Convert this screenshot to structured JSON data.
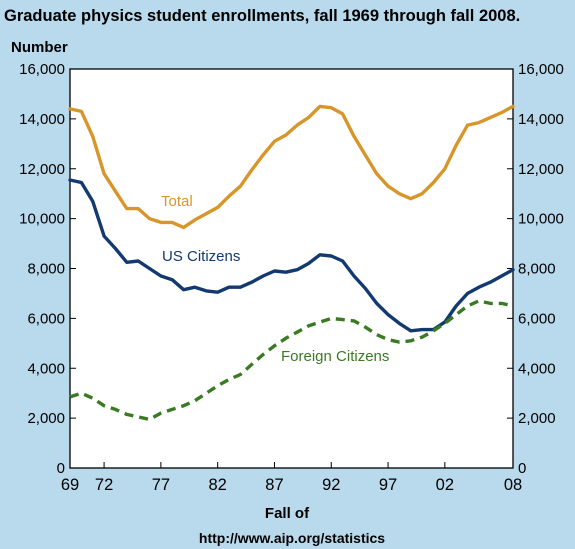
{
  "chart_data": {
    "type": "line",
    "title": "Graduate physics student enrollments, fall 1969 through fall 2008.",
    "ylabel": "Number",
    "xlabel": "Fall of",
    "source": "http://www.aip.org/statistics",
    "ylim": [
      0,
      16000
    ],
    "xlim": [
      1969,
      2008
    ],
    "yticks": [
      0,
      2000,
      4000,
      6000,
      8000,
      10000,
      12000,
      14000,
      16000
    ],
    "ytick_labels": [
      "0",
      "2,000",
      "4,000",
      "6,000",
      "8,000",
      "10,000",
      "12,000",
      "14,000",
      "16,000"
    ],
    "xticks": [
      1969,
      1972,
      1977,
      1982,
      1987,
      1992,
      1997,
      2002,
      2008
    ],
    "xtick_labels": [
      "69",
      "72",
      "77",
      "82",
      "87",
      "92",
      "97",
      "02",
      "08"
    ],
    "grid": false,
    "legend": "inline labels",
    "x": [
      1969,
      1970,
      1971,
      1972,
      1973,
      1974,
      1975,
      1976,
      1977,
      1978,
      1979,
      1980,
      1981,
      1982,
      1983,
      1984,
      1985,
      1986,
      1987,
      1988,
      1989,
      1990,
      1991,
      1992,
      1993,
      1994,
      1995,
      1996,
      1997,
      1998,
      1999,
      2000,
      2001,
      2002,
      2003,
      2004,
      2005,
      2006,
      2007,
      2008
    ],
    "series": [
      {
        "name": "Total",
        "color": "#d8962a",
        "dash": "solid",
        "values": [
          14400,
          14300,
          13300,
          11800,
          11100,
          10400,
          10400,
          10000,
          9850,
          9850,
          9650,
          9950,
          10200,
          10450,
          10900,
          11300,
          11950,
          12550,
          13100,
          13350,
          13750,
          14050,
          14500,
          14450,
          14200,
          13300,
          12550,
          11800,
          11300,
          11000,
          10800,
          11000,
          11450,
          12000,
          12950,
          13750,
          13850,
          14050,
          14250,
          14500
        ]
      },
      {
        "name": "US Citizens",
        "color": "#123a70",
        "dash": "solid",
        "values": [
          11550,
          11450,
          10700,
          9300,
          8800,
          8250,
          8300,
          8000,
          7700,
          7550,
          7150,
          7250,
          7100,
          7050,
          7250,
          7250,
          7450,
          7700,
          7900,
          7850,
          7950,
          8200,
          8550,
          8500,
          8300,
          7700,
          7200,
          6600,
          6150,
          5800,
          5500,
          5550,
          5550,
          5850,
          6500,
          7000,
          7250,
          7450,
          7700,
          7950
        ]
      },
      {
        "name": "Foreign Citizens",
        "color": "#3a7a22",
        "dash": "dashed",
        "values": [
          2850,
          3000,
          2800,
          2500,
          2350,
          2150,
          2050,
          1950,
          2200,
          2350,
          2500,
          2700,
          3000,
          3300,
          3550,
          3750,
          4150,
          4550,
          4900,
          5200,
          5450,
          5700,
          5850,
          6000,
          5950,
          5900,
          5650,
          5350,
          5150,
          5050,
          5100,
          5250,
          5500,
          5800,
          6150,
          6500,
          6700,
          6600,
          6600,
          6500
        ]
      }
    ],
    "label_positions_note": ""
  }
}
